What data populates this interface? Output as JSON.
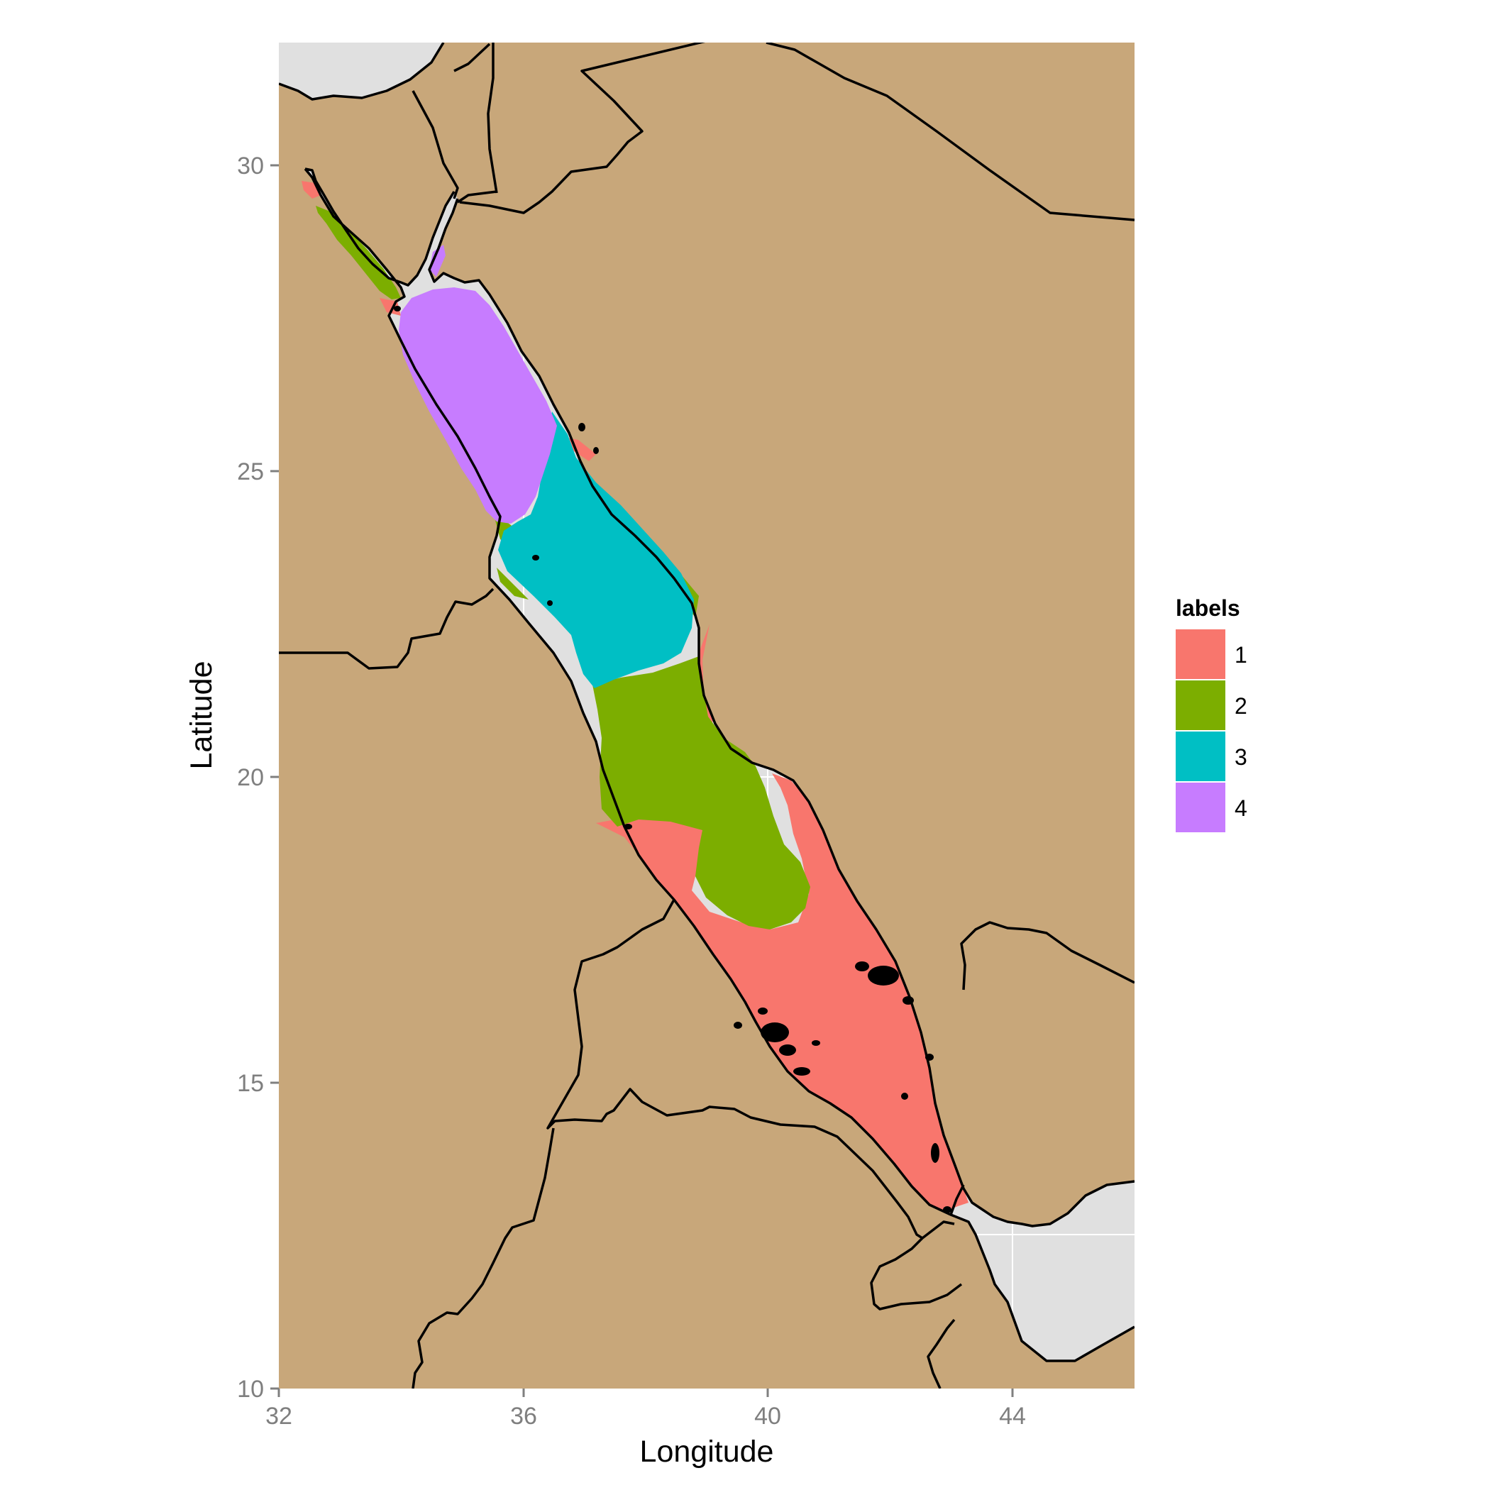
{
  "chart_data": {
    "type": "map",
    "xlabel": "Longitude",
    "ylabel": "Latitude",
    "xlim": [
      32,
      46
    ],
    "ylim": [
      10,
      32
    ],
    "x_ticks": [
      32,
      36,
      40,
      44
    ],
    "y_ticks": [
      10,
      15,
      20,
      25,
      30
    ],
    "x_tick_labels": [
      "32",
      "36",
      "40",
      "44"
    ],
    "y_tick_labels": [
      "10",
      "15",
      "20",
      "25",
      "30"
    ],
    "grid": true,
    "legend_position": "right",
    "legend": {
      "title": "labels",
      "entries": [
        {
          "label": "1",
          "color": "#F8766D"
        },
        {
          "label": "2",
          "color": "#7CAE00"
        },
        {
          "label": "3",
          "color": "#00BFC4"
        },
        {
          "label": "4",
          "color": "#C77CFF"
        }
      ]
    },
    "colors": {
      "land": "#C8A77A",
      "water": "#E0E0E0",
      "grid": "#FFFFFF",
      "border": "#000000"
    }
  }
}
